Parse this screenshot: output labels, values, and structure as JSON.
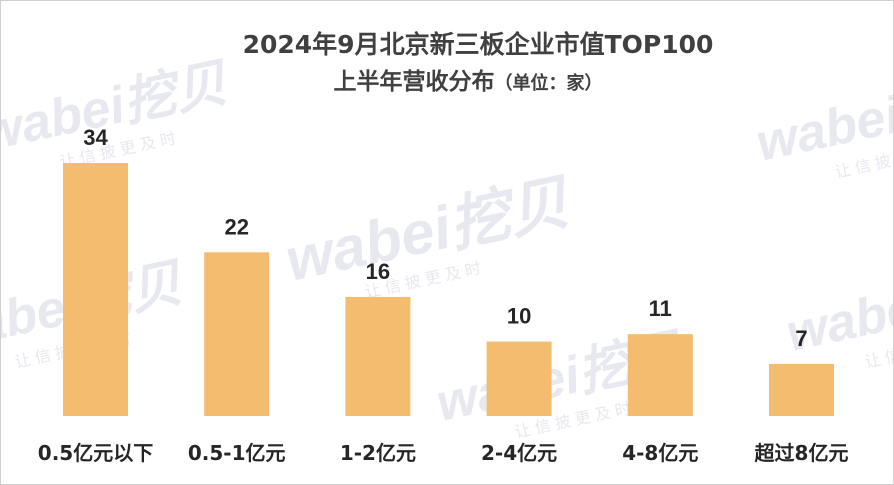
{
  "chart_data": {
    "type": "bar",
    "title": "2024年9月北京新三板企业市值TOP100",
    "subtitle": "上半年营收分布",
    "unit_note": "（单位：家）",
    "categories": [
      "0.5亿元以下",
      "0.5-1亿元",
      "1-2亿元",
      "2-4亿元",
      "4-8亿元",
      "超过8亿元"
    ],
    "values": [
      34,
      22,
      16,
      10,
      11,
      7
    ],
    "xlabel": "",
    "ylabel": "",
    "ylim": [
      0,
      34
    ],
    "grid": false,
    "legend": "none",
    "bar_color": "#F4BC6E",
    "label_color": "#262626"
  },
  "watermark": {
    "brand": "wabei挖贝",
    "slogan": "让 信 披 更 及 时",
    "color": "#E7E8F0"
  }
}
